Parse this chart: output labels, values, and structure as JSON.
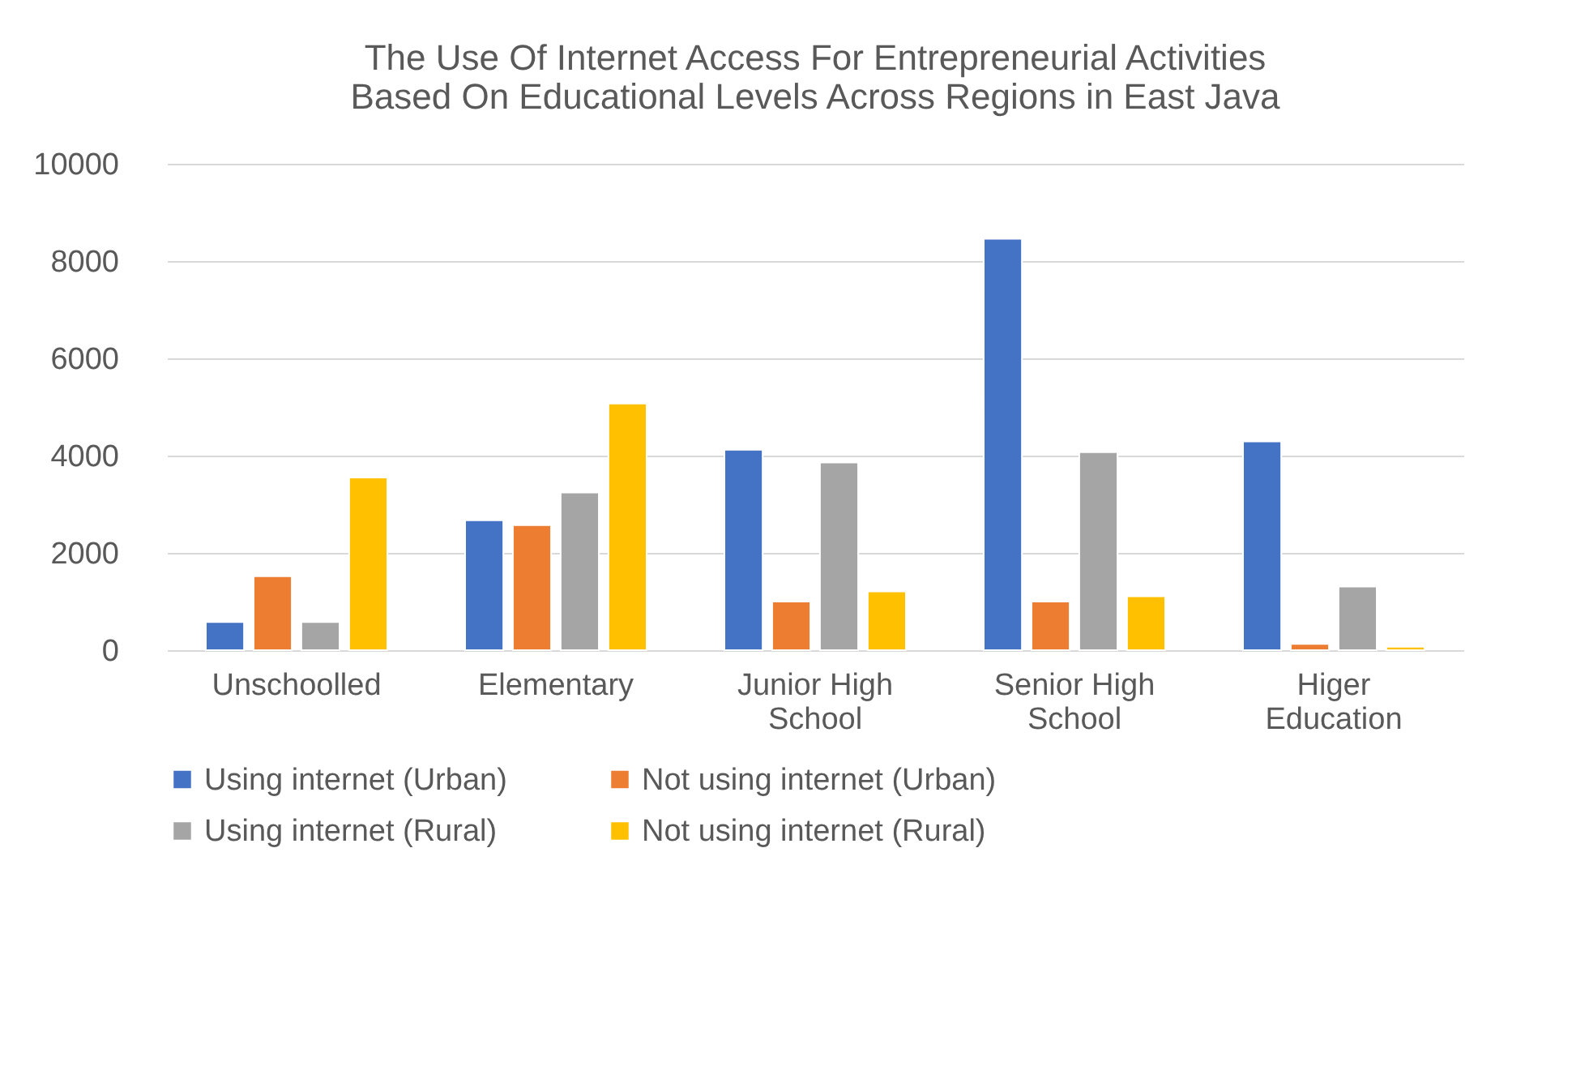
{
  "chart_data": {
    "type": "bar",
    "title": "The Use Of Internet Access For Entrepreneurial Activities Based On Educational Levels Across Regions in East Java",
    "categories": [
      "Unschoolled",
      "Elementary",
      "Junior High School",
      "Senior High School",
      "Higer Education"
    ],
    "series": [
      {
        "name": "Using internet (Urban)",
        "color": "#4472c4",
        "values": [
          580,
          2670,
          4120,
          8460,
          4290
        ]
      },
      {
        "name": "Not using internet (Urban)",
        "color": "#ed7d31",
        "values": [
          1520,
          2570,
          1000,
          1000,
          130
        ]
      },
      {
        "name": "Using internet (Rural)",
        "color": "#a5a5a5",
        "values": [
          580,
          3240,
          3860,
          4070,
          1310
        ]
      },
      {
        "name": "Not using internet (Rural)",
        "color": "#ffc000",
        "values": [
          3550,
          5070,
          1210,
          1110,
          70
        ]
      }
    ],
    "ylim": [
      0,
      10000
    ],
    "yticks": [
      0,
      2000,
      4000,
      6000,
      8000,
      10000
    ],
    "grid": "y",
    "legend": "bottom"
  }
}
